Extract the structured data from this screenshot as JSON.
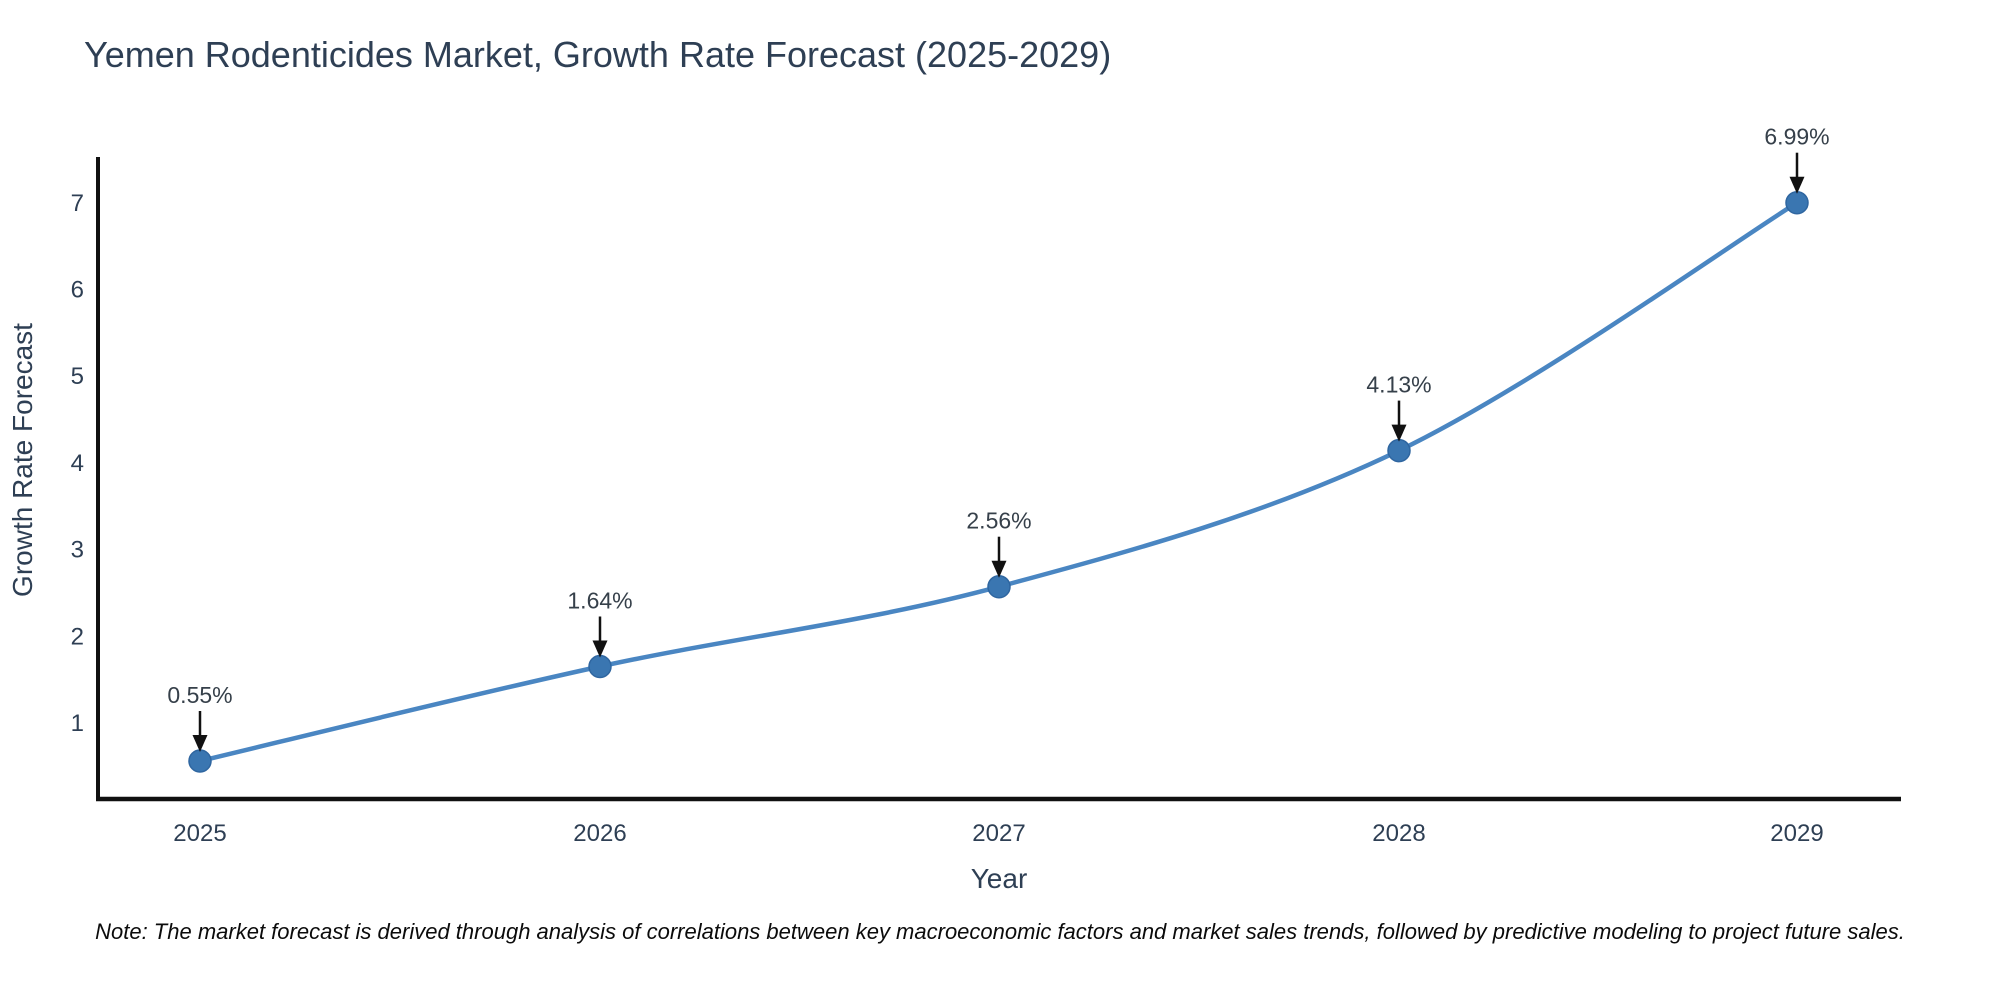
{
  "title": "Yemen Rodenticides Market, Growth Rate Forecast (2025-2029)",
  "note": "Note: The market forecast is derived through analysis of correlations between key macroeconomic factors and market sales trends, followed by predictive modeling to project future sales.",
  "axes": {
    "x_label": "Year",
    "y_label": "Growth Rate Forecast",
    "y_ticks": [
      1,
      2,
      3,
      4,
      5,
      6,
      7
    ],
    "x_ticks": [
      "2025",
      "2026",
      "2027",
      "2028",
      "2029"
    ]
  },
  "colors": {
    "line": "#4a86c2",
    "marker": "#3a76b1",
    "marker_edge": "#2f66a0",
    "text": "#2e3f54",
    "axis": "#111111",
    "arrow": "#111111",
    "note_text": "#0b0b0b"
  },
  "chart_data": {
    "type": "line",
    "title": "Yemen Rodenticides Market, Growth Rate Forecast (2025-2029)",
    "xlabel": "Year",
    "ylabel": "Growth Rate Forecast",
    "x": [
      2025,
      2026,
      2027,
      2028,
      2029
    ],
    "series": [
      {
        "name": "Growth Rate Forecast",
        "values": [
          0.55,
          1.64,
          2.56,
          4.13,
          6.99
        ]
      }
    ],
    "annotations": [
      "0.55%",
      "1.64%",
      "2.56%",
      "4.13%",
      "6.99%"
    ],
    "ylim": [
      0.1,
      7.5
    ],
    "xlim": [
      2025,
      2029
    ],
    "grid": false,
    "legend": false,
    "marker_style": "circle",
    "line_smoothing": true
  }
}
